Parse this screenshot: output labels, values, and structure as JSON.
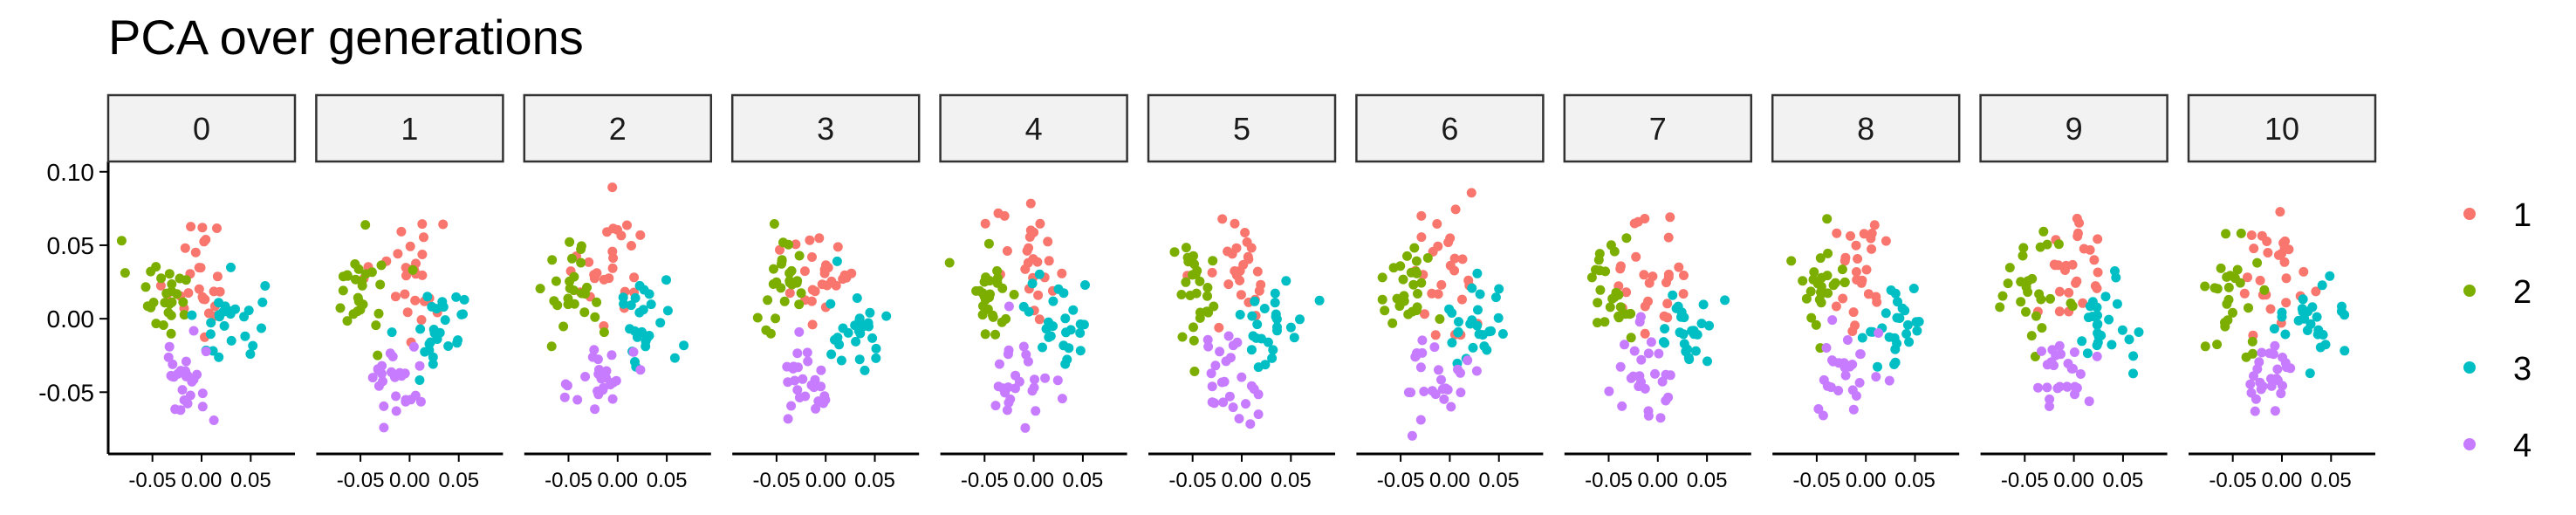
{
  "title": "PCA over generations",
  "chart_data": {
    "type": "scatter",
    "title": "PCA over generations",
    "facet_variable": "generation",
    "facets": [
      "0",
      "1",
      "2",
      "3",
      "4",
      "5",
      "6",
      "7",
      "8",
      "9",
      "10"
    ],
    "xlim": [
      -0.095,
      0.095
    ],
    "ylim": [
      -0.092,
      0.107
    ],
    "x_ticks": [
      -0.05,
      0.0,
      0.05
    ],
    "x_tick_labels": [
      "-0.05",
      "0.00",
      "0.05"
    ],
    "y_ticks": [
      -0.05,
      0.0,
      0.05,
      0.1
    ],
    "y_tick_labels": [
      "-0.05",
      "0.00",
      "0.05",
      "0.10"
    ],
    "grid": false,
    "legend_position": "right",
    "series": [
      {
        "name": "1",
        "color": "#F8766D",
        "center": [
          -0.003,
          0.03
        ],
        "spread": [
          0.018,
          0.022
        ]
      },
      {
        "name": "2",
        "color": "#7CAE00",
        "center": [
          -0.045,
          0.02
        ],
        "spread": [
          0.015,
          0.017
        ]
      },
      {
        "name": "3",
        "color": "#00BFC4",
        "center": [
          0.03,
          -0.003
        ],
        "spread": [
          0.017,
          0.015
        ]
      },
      {
        "name": "4",
        "color": "#C77CFF",
        "center": [
          -0.015,
          -0.04
        ],
        "spread": [
          0.015,
          0.016
        ]
      }
    ],
    "points_per_series": 26
  }
}
